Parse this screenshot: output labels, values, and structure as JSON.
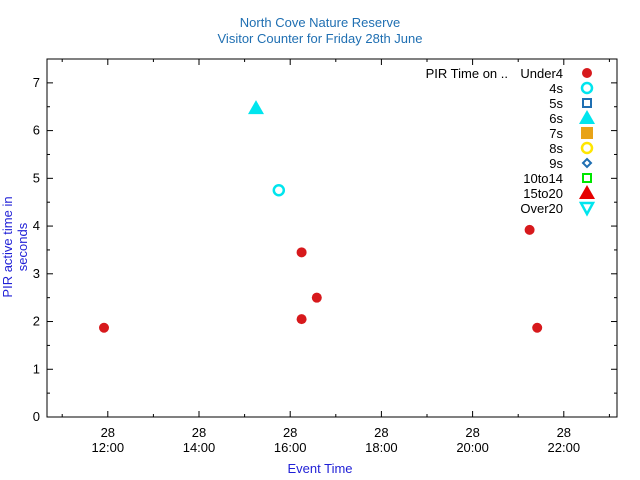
{
  "chart_data": {
    "type": "scatter",
    "title": "North Cove Nature Reserve",
    "subtitle": "Visitor Counter for Friday 28th June",
    "xlabel": "Event Time",
    "ylabel": "PIR active time in seconds",
    "legend_title": "PIR Time on ..",
    "legend_position": "top-right",
    "grid": false,
    "xlim": [
      "28 10:40",
      "28 23:10"
    ],
    "ylim": [
      0,
      7.5
    ],
    "x_ticks": [
      {
        "day": "28",
        "time": "12:00"
      },
      {
        "day": "28",
        "time": "14:00"
      },
      {
        "day": "28",
        "time": "16:00"
      },
      {
        "day": "28",
        "time": "18:00"
      },
      {
        "day": "28",
        "time": "20:00"
      },
      {
        "day": "28",
        "time": "22:00"
      }
    ],
    "y_ticks": [
      "0",
      "1",
      "2",
      "3",
      "4",
      "5",
      "6",
      "7"
    ],
    "series": [
      {
        "name": "Under4",
        "color": "#d7191c",
        "marker": "filled-circle",
        "points": [
          {
            "x": "28 11:55",
            "y": 1.87
          },
          {
            "x": "28 16:15",
            "y": 3.45
          },
          {
            "x": "28 16:15",
            "y": 2.05
          },
          {
            "x": "28 16:35",
            "y": 2.5
          },
          {
            "x": "28 21:15",
            "y": 3.92
          },
          {
            "x": "28 21:25",
            "y": 1.87
          }
        ]
      },
      {
        "name": "4s",
        "color": "#00e5ee",
        "marker": "open-circle",
        "points": [
          {
            "x": "28 15:45",
            "y": 4.75
          }
        ]
      },
      {
        "name": "5s",
        "color": "#1f6fb2",
        "marker": "open-square",
        "points": []
      },
      {
        "name": "6s",
        "color": "#00e5ee",
        "marker": "filled-triangle",
        "points": [
          {
            "x": "28 15:15",
            "y": 6.47
          }
        ]
      },
      {
        "name": "7s",
        "color": "#e8a317",
        "marker": "filled-square",
        "points": []
      },
      {
        "name": "8s",
        "color": "#ffe600",
        "marker": "open-circle",
        "points": []
      },
      {
        "name": "9s",
        "color": "#1f6fb2",
        "marker": "open-diamond",
        "points": []
      },
      {
        "name": "10to14",
        "color": "#00e600",
        "marker": "open-square",
        "points": []
      },
      {
        "name": "15to20",
        "color": "#e60000",
        "marker": "filled-triangle",
        "points": []
      },
      {
        "name": "Over20",
        "color": "#00e5ee",
        "marker": "open-triangle-down",
        "points": []
      }
    ]
  }
}
